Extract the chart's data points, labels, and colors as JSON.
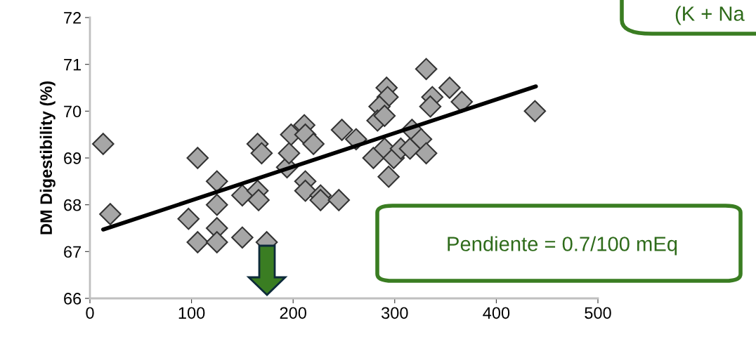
{
  "chart_data": {
    "type": "scatter",
    "ylabel": "DM Digestibility (%)",
    "xlim": [
      0,
      500
    ],
    "xticks": [
      0,
      100,
      200,
      300,
      400,
      500
    ],
    "ylim": [
      66,
      72
    ],
    "yticks": [
      66,
      67,
      68,
      69,
      70,
      71,
      72
    ],
    "grid": false,
    "marker": "diamond",
    "series": [
      {
        "color": "#a6a6a6",
        "x": [
          13,
          20,
          106,
          125,
          97,
          125,
          125,
          106,
          125,
          150,
          150,
          165,
          169,
          165,
          166,
          174,
          194,
          196,
          198,
          211,
          212,
          220,
          212,
          212,
          227,
          227,
          245,
          248,
          262,
          279,
          292,
          293,
          285,
          283,
          290,
          290,
          294,
          299,
          306,
          317,
          315,
          326,
          331,
          331,
          337,
          335,
          354,
          366,
          438
        ],
        "values": [
          69.3,
          67.8,
          69.0,
          68.5,
          67.7,
          68.0,
          67.5,
          67.2,
          67.2,
          67.3,
          68.2,
          69.3,
          69.1,
          68.3,
          68.1,
          67.2,
          68.8,
          69.1,
          69.5,
          69.7,
          69.5,
          69.3,
          68.5,
          68.3,
          68.2,
          68.1,
          68.1,
          69.6,
          69.4,
          69.0,
          70.5,
          70.3,
          70.1,
          69.8,
          69.9,
          69.2,
          68.6,
          69.0,
          69.2,
          69.6,
          69.2,
          69.4,
          69.1,
          70.9,
          70.3,
          70.1,
          70.5,
          70.2,
          70.0
        ]
      },
      {
        "type": "line",
        "marker": "none",
        "color": "#000000",
        "x": [
          13,
          439
        ],
        "values": [
          67.47,
          70.53
        ]
      }
    ],
    "annotations": [
      "Pendiente = 0.7/100 mEq",
      "(K + Na"
    ]
  }
}
